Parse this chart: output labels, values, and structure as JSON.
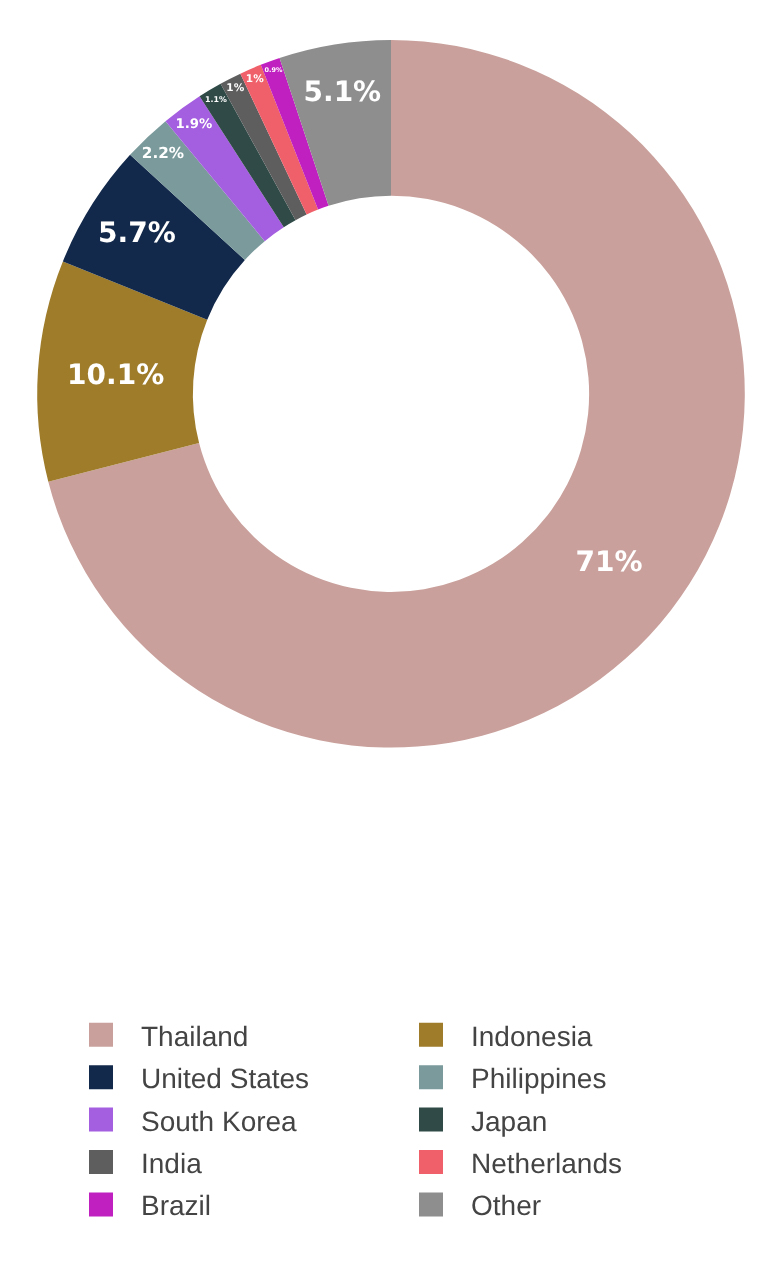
{
  "chart_data": {
    "type": "donut",
    "categories": [
      "Thailand",
      "Indonesia",
      "United States",
      "Philippines",
      "South Korea",
      "Japan",
      "India",
      "Netherlands",
      "Brazil",
      "Other"
    ],
    "values": [
      71,
      10.1,
      5.7,
      2.2,
      1.9,
      1.1,
      1,
      1,
      0.9,
      5.1
    ],
    "value_labels": [
      "71%",
      "10.1%",
      "5.7%",
      "2.2%",
      "1.9%",
      "1.1%",
      "1%",
      "1%",
      "0.9%",
      "5.1%"
    ],
    "colors": [
      "#c9a09b",
      "#9e7c2a",
      "#13294b",
      "#7a9a9b",
      "#a45ee0",
      "#2f4a47",
      "#5e5e5e",
      "#f0606a",
      "#c020c0",
      "#8e8e8e"
    ],
    "legend": "bottom"
  }
}
